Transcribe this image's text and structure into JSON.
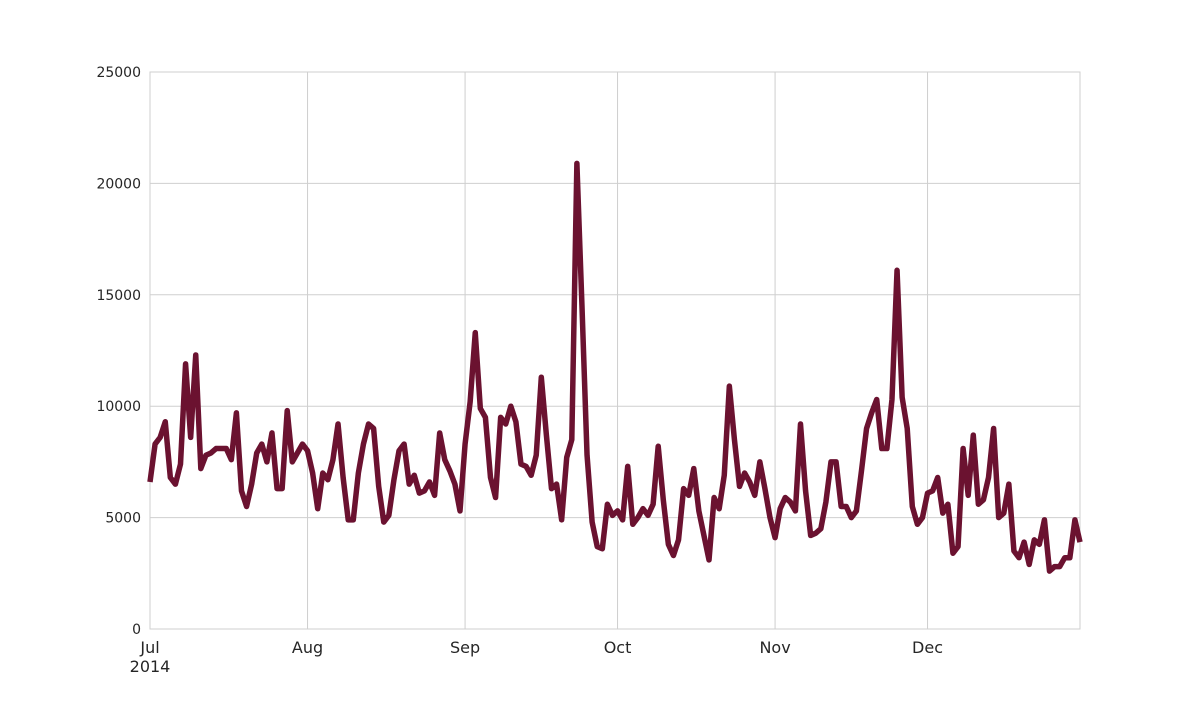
{
  "chart_data": {
    "type": "line",
    "color": "#6b1230",
    "values": [
      6600,
      8300,
      8600,
      9300,
      6800,
      6500,
      7400,
      11900,
      8600,
      12300,
      7200,
      7800,
      7900,
      8100,
      8100,
      8100,
      7600,
      9700,
      6200,
      5500,
      6500,
      7900,
      8300,
      7500,
      8800,
      6300,
      6300,
      9800,
      7500,
      7900,
      8300,
      8000,
      7000,
      5400,
      7000,
      6700,
      7600,
      9200,
      6800,
      4900,
      4900,
      7000,
      8300,
      9200,
      9000,
      6400,
      4800,
      5100,
      6700,
      8000,
      8300,
      6500,
      6900,
      6100,
      6200,
      6600,
      6000,
      8800,
      7600,
      7100,
      6500,
      5300,
      8300,
      10200,
      13300,
      9900,
      9500,
      6800,
      5900,
      9500,
      9200,
      10000,
      9300,
      7400,
      7300,
      6900,
      7800,
      11300,
      8700,
      6300,
      6500,
      4900,
      7700,
      8500,
      20900,
      14500,
      7800,
      4800,
      3700,
      3600,
      5600,
      5100,
      5300,
      4900,
      7300,
      4700,
      5000,
      5400,
      5100,
      5600,
      8200,
      5800,
      3800,
      3300,
      4000,
      6300,
      6000,
      7200,
      5300,
      4200,
      3100,
      5900,
      5400,
      6900,
      10900,
      8500,
      6400,
      7000,
      6600,
      6000,
      7500,
      6300,
      5000,
      4100,
      5400,
      5900,
      5700,
      5300,
      9200,
      6200,
      4200,
      4300,
      4500,
      5700,
      7500,
      7500,
      5500,
      5500,
      5000,
      5300,
      7100,
      9000,
      9700,
      10300,
      8100,
      8100,
      10300,
      16100,
      10400,
      9000,
      5500,
      4700,
      5000,
      6100,
      6200,
      6800,
      5200,
      5600,
      3400,
      3700,
      8100,
      6000,
      8700,
      5600,
      5800,
      6800,
      9000,
      5000,
      5200,
      6500,
      3500,
      3200,
      3900,
      2900,
      4000,
      3800,
      4900,
      2600,
      2800,
      2800,
      3200,
      3200,
      4900,
      3900
    ],
    "xlim": [
      0,
      183
    ],
    "xticks": [
      {
        "value": 0,
        "label": "Jul\n2014"
      },
      {
        "value": 31,
        "label": "Aug"
      },
      {
        "value": 62,
        "label": "Sep"
      },
      {
        "value": 92,
        "label": "Oct"
      },
      {
        "value": 123,
        "label": "Nov"
      },
      {
        "value": 153,
        "label": "Dec"
      }
    ],
    "ylim": [
      0,
      25000
    ],
    "yticks": [
      0,
      5000,
      10000,
      15000,
      20000,
      25000
    ],
    "grid": true
  }
}
